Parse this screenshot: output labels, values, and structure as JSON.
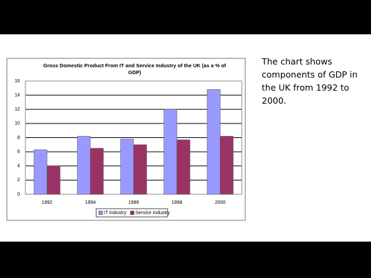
{
  "slide_text": "The chart shows components of GDP in the UK from 1992 to 2000.",
  "chart_data": {
    "type": "bar",
    "title": [
      "Gross Domestic Product From IT and Service Industry of the UK (as a % of",
      "GDP)"
    ],
    "categories": [
      "1992",
      "1994",
      "1996",
      "1998",
      "2000"
    ],
    "series": [
      {
        "name": "IT Industry",
        "color": "#9999ff",
        "values": [
          6.3,
          8.2,
          7.8,
          12,
          14.8
        ]
      },
      {
        "name": "Service Industry",
        "color": "#993366",
        "values": [
          4,
          6.5,
          7,
          7.7,
          8.2
        ]
      }
    ],
    "ylim": [
      0,
      16
    ],
    "yticks": [
      0,
      2,
      4,
      6,
      8,
      10,
      12,
      14,
      16
    ],
    "grid": true,
    "legend": "bottom"
  }
}
